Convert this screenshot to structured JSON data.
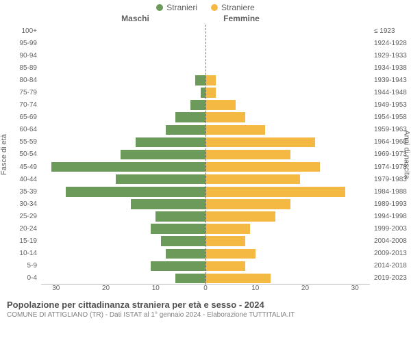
{
  "legend": {
    "male": {
      "label": "Stranieri",
      "color": "#6b9a5b"
    },
    "female": {
      "label": "Straniere",
      "color": "#f4b942"
    }
  },
  "headers": {
    "male": "Maschi",
    "female": "Femmine"
  },
  "axis": {
    "left_label": "Fasce di età",
    "right_label": "Anni di nascita",
    "x_max": 33,
    "x_ticks_left": [
      30,
      20,
      10,
      0
    ],
    "x_ticks_right": [
      0,
      10,
      20,
      30
    ]
  },
  "colors": {
    "male_bar": "#6b9a5b",
    "female_bar": "#f4b942",
    "background": "#ffffff",
    "text": "#606060",
    "center_line": "#707070"
  },
  "rows": [
    {
      "age": "100+",
      "year": "≤ 1923",
      "m": 0,
      "f": 0
    },
    {
      "age": "95-99",
      "year": "1924-1928",
      "m": 0,
      "f": 0
    },
    {
      "age": "90-94",
      "year": "1929-1933",
      "m": 0,
      "f": 0
    },
    {
      "age": "85-89",
      "year": "1934-1938",
      "m": 0,
      "f": 0
    },
    {
      "age": "80-84",
      "year": "1939-1943",
      "m": 2,
      "f": 2
    },
    {
      "age": "75-79",
      "year": "1944-1948",
      "m": 1,
      "f": 2
    },
    {
      "age": "70-74",
      "year": "1949-1953",
      "m": 3,
      "f": 6
    },
    {
      "age": "65-69",
      "year": "1954-1958",
      "m": 6,
      "f": 8
    },
    {
      "age": "60-64",
      "year": "1959-1963",
      "m": 8,
      "f": 12
    },
    {
      "age": "55-59",
      "year": "1964-1968",
      "m": 14,
      "f": 22
    },
    {
      "age": "50-54",
      "year": "1969-1973",
      "m": 17,
      "f": 17
    },
    {
      "age": "45-49",
      "year": "1974-1978",
      "m": 31,
      "f": 23
    },
    {
      "age": "40-44",
      "year": "1979-1983",
      "m": 18,
      "f": 19
    },
    {
      "age": "35-39",
      "year": "1984-1988",
      "m": 28,
      "f": 28
    },
    {
      "age": "30-34",
      "year": "1989-1993",
      "m": 15,
      "f": 17
    },
    {
      "age": "25-29",
      "year": "1994-1998",
      "m": 10,
      "f": 14
    },
    {
      "age": "20-24",
      "year": "1999-2003",
      "m": 11,
      "f": 9
    },
    {
      "age": "15-19",
      "year": "2004-2008",
      "m": 9,
      "f": 8
    },
    {
      "age": "10-14",
      "year": "2009-2013",
      "m": 8,
      "f": 10
    },
    {
      "age": "5-9",
      "year": "2014-2018",
      "m": 11,
      "f": 8
    },
    {
      "age": "0-4",
      "year": "2019-2023",
      "m": 6,
      "f": 13
    }
  ],
  "footer": {
    "title": "Popolazione per cittadinanza straniera per età e sesso - 2024",
    "subtitle": "COMUNE DI ATTIGLIANO (TR) - Dati ISTAT al 1° gennaio 2024 - Elaborazione TUTTITALIA.IT"
  },
  "typography": {
    "legend_fontsize": 12,
    "header_fontsize": 12,
    "tick_fontsize": 10,
    "axis_label_fontsize": 11,
    "title_fontsize": 13,
    "subtitle_fontsize": 10
  }
}
